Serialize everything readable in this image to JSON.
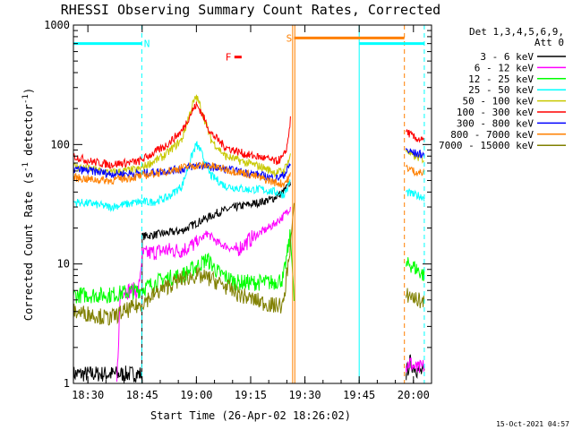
{
  "chart_data": {
    "type": "line",
    "title": "RHESSI Observing Summary Count Rates, Corrected",
    "xlabel": "Start Time (26-Apr-02 18:26:02)",
    "ylabel_main": "Corrected Count Rate (s",
    "ylabel_sup1": "-1",
    "ylabel_mid": " detector",
    "ylabel_sup2": "-1",
    "ylabel_end": ")",
    "x_unit": "minutes after 18:26",
    "xlim": [
      0,
      99
    ],
    "ylim": [
      1,
      1000
    ],
    "y_scale": "log",
    "x_ticks": [
      {
        "label": "18:30",
        "value": 4
      },
      {
        "label": "18:45",
        "value": 19
      },
      {
        "label": "19:00",
        "value": 34
      },
      {
        "label": "19:15",
        "value": 49
      },
      {
        "label": "19:30",
        "value": 64
      },
      {
        "label": "19:45",
        "value": 79
      },
      {
        "label": "20:00",
        "value": 94
      }
    ],
    "y_ticks": [
      {
        "label": "1",
        "value": 1
      },
      {
        "label": "10",
        "value": 10
      },
      {
        "label": "100",
        "value": 100
      },
      {
        "label": "1000",
        "value": 1000
      }
    ],
    "legend_header": [
      "Det 1,3,4,5,6,9,",
      "Att 0"
    ],
    "legend_placement": "right",
    "series": [
      {
        "name": "3 - 6 keV",
        "color": "#000000",
        "x": [
          0,
          18.9,
          19,
          25,
          30,
          34,
          40,
          45,
          50,
          55,
          58,
          60,
          92,
          93,
          95,
          97
        ],
        "y": [
          1.2,
          1.2,
          17,
          18,
          19,
          22,
          27,
          30,
          32,
          35,
          40,
          48,
          1.2,
          1.5,
          1.3,
          1.2
        ]
      },
      {
        "name": "6 - 12 keV",
        "color": "#ff00ff",
        "x": [
          12,
          13,
          18,
          19,
          25,
          30,
          34,
          37,
          40,
          45,
          50,
          55,
          58,
          60,
          92,
          93,
          95,
          97
        ],
        "y": [
          1,
          6,
          6,
          12,
          13,
          13,
          15,
          18,
          15,
          13,
          17,
          21,
          25,
          30,
          1.4,
          1.5,
          1.3,
          1.4
        ]
      },
      {
        "name": "12 - 25 keV",
        "color": "#00ff00",
        "x": [
          0,
          10,
          18,
          25,
          30,
          34,
          37,
          40,
          45,
          50,
          55,
          58,
          60,
          61,
          92,
          93,
          95,
          97
        ],
        "y": [
          5.5,
          5.5,
          6,
          7.5,
          8,
          9.5,
          11,
          8.5,
          7,
          7,
          7,
          7.5,
          18,
          5,
          9.5,
          10,
          9,
          8
        ]
      },
      {
        "name": "25 - 50 keV",
        "color": "#00ffff",
        "x": [
          0,
          5,
          10,
          18,
          22,
          26,
          30,
          33,
          34,
          35,
          38,
          42,
          48,
          52,
          56,
          58,
          59,
          60,
          92,
          94,
          96,
          97
        ],
        "y": [
          33,
          32,
          30,
          33,
          33,
          36,
          45,
          85,
          100,
          90,
          55,
          45,
          42,
          42,
          40,
          38,
          42,
          50,
          40,
          38,
          37,
          36
        ]
      },
      {
        "name": "50 - 100 keV",
        "color": "#c8c800",
        "x": [
          0,
          5,
          10,
          18,
          25,
          30,
          33,
          34,
          35,
          38,
          42,
          48,
          52,
          56,
          58,
          59,
          60,
          92,
          94,
          96,
          97
        ],
        "y": [
          66,
          62,
          58,
          62,
          80,
          110,
          220,
          250,
          215,
          110,
          80,
          70,
          65,
          58,
          60,
          68,
          80,
          90,
          80,
          77,
          75
        ]
      },
      {
        "name": "100 - 300 keV",
        "color": "#ff0000",
        "x": [
          0,
          5,
          10,
          18,
          25,
          30,
          33,
          34,
          35,
          38,
          42,
          48,
          52,
          56,
          58,
          59,
          60,
          92,
          94,
          96,
          97
        ],
        "y": [
          80,
          72,
          68,
          72,
          95,
          130,
          195,
          215,
          195,
          125,
          95,
          82,
          78,
          72,
          78,
          95,
          160,
          130,
          115,
          110,
          105
        ]
      },
      {
        "name": "300 - 800 keV",
        "color": "#0000ff",
        "x": [
          0,
          5,
          10,
          18,
          25,
          30,
          34,
          38,
          42,
          48,
          52,
          56,
          58,
          59,
          60,
          92,
          94,
          96,
          97
        ],
        "y": [
          62,
          60,
          57,
          57,
          60,
          62,
          67,
          65,
          62,
          58,
          55,
          52,
          55,
          60,
          70,
          90,
          85,
          83,
          82
        ]
      },
      {
        "name": "800 - 7000 keV",
        "color": "#ff8000",
        "x": [
          0,
          5,
          10,
          18,
          25,
          30,
          34,
          38,
          42,
          48,
          52,
          56,
          58,
          59,
          60,
          92,
          94,
          96,
          97
        ],
        "y": [
          53,
          51,
          50,
          54,
          59,
          64,
          67,
          66,
          62,
          57,
          52,
          48,
          47,
          50,
          55,
          65,
          60,
          58,
          57
        ]
      },
      {
        "name": "7000 - 15000 keV",
        "color": "#808000",
        "x": [
          0,
          5,
          10,
          14,
          18,
          22,
          26,
          30,
          34,
          38,
          42,
          46,
          50,
          55,
          58,
          60,
          61,
          92,
          93,
          95,
          97
        ],
        "y": [
          4,
          3.8,
          3.5,
          4,
          4.5,
          5.5,
          6.5,
          7.5,
          8,
          7.5,
          6.5,
          5.5,
          5,
          4.5,
          4.5,
          15,
          30,
          5.5,
          5.5,
          5,
          4.8
        ]
      }
    ],
    "annotations": [
      {
        "label": "N",
        "color": "#00ffff",
        "x_start": 0,
        "x_end": 18.9,
        "y": 700,
        "label_x": 19.5
      },
      {
        "label": "N",
        "color": "#00ffff",
        "x_start": 79,
        "x_end": 97,
        "y": 700,
        "label_x": null
      },
      {
        "label": "S",
        "color": "#ff8000",
        "x_start": 61,
        "x_end": 91.5,
        "y": 780,
        "label_x": 58.8
      },
      {
        "label": "F",
        "color": "#ff0000",
        "x_start": 44.5,
        "x_end": 46.5,
        "y": 540,
        "label_x": 42
      }
    ],
    "boundary_lines": [
      {
        "x": 0,
        "color": "#00ffff",
        "style": "solid"
      },
      {
        "x": 18.9,
        "color": "#00ffff",
        "style": "dashed"
      },
      {
        "x": 60.6,
        "color": "#ff8000",
        "style": "solid"
      },
      {
        "x": 61.2,
        "color": "#ff8000",
        "style": "solid"
      },
      {
        "x": 79,
        "color": "#00ffff",
        "style": "solid"
      },
      {
        "x": 91.5,
        "color": "#ff8000",
        "style": "dashed"
      },
      {
        "x": 97,
        "color": "#00ffff",
        "style": "dashed"
      }
    ],
    "grid": false,
    "footer_timestamp": "15-Oct-2021 04:57"
  }
}
